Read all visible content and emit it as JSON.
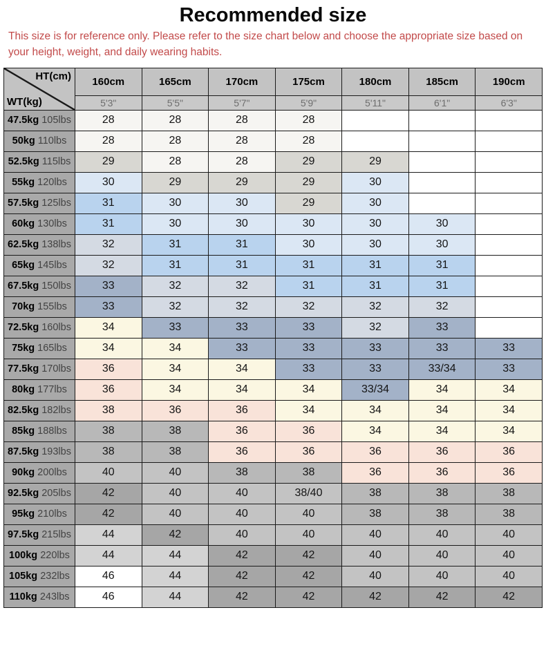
{
  "title": "Recommended size",
  "notice": "This size is for reference only. Please refer to the size chart below and choose the appropriate size based on your height, weight, and daily wearing habits.",
  "accent_color": "#c24a4a",
  "chart_data": {
    "type": "table",
    "title": "Recommended size",
    "col_axis": "HT(cm)",
    "row_axis": "WT(kg)",
    "columns_cm": [
      "160cm",
      "165cm",
      "170cm",
      "175cm",
      "180cm",
      "185cm",
      "190cm"
    ],
    "columns_ft": [
      "5'3\"",
      "5'5\"",
      "5'7\"",
      "5'9\"",
      "5'11\"",
      "6'1\"",
      "6'3\""
    ],
    "colors": {
      "w": "#f6f5f2",
      "lg": "#d8d7d2",
      "pb": "#dbe7f4",
      "mb": "#b9d3ee",
      "bg": "#d4dae3",
      "sl": "#a3b2c8",
      "cr": "#fbf7e2",
      "pk": "#f9e3d9",
      "g38": "#b8b8b8",
      "g40": "#c3c3c3",
      "g42": "#a6a6a6",
      "g44": "#d3d3d3",
      "wt": "#ffffff"
    },
    "rows": [
      {
        "kg": "47.5kg",
        "lbs": "105lbs",
        "cells": [
          {
            "v": "28",
            "c": "w"
          },
          {
            "v": "28",
            "c": "w"
          },
          {
            "v": "28",
            "c": "w"
          },
          {
            "v": "28",
            "c": "w"
          },
          {
            "v": "",
            "c": "wt"
          },
          {
            "v": "",
            "c": "wt"
          },
          {
            "v": "",
            "c": "wt"
          }
        ]
      },
      {
        "kg": "50kg",
        "lbs": "110lbs",
        "cells": [
          {
            "v": "28",
            "c": "w"
          },
          {
            "v": "28",
            "c": "w"
          },
          {
            "v": "28",
            "c": "w"
          },
          {
            "v": "28",
            "c": "w"
          },
          {
            "v": "",
            "c": "wt"
          },
          {
            "v": "",
            "c": "wt"
          },
          {
            "v": "",
            "c": "wt"
          }
        ]
      },
      {
        "kg": "52.5kg",
        "lbs": "115lbs",
        "cells": [
          {
            "v": "29",
            "c": "lg"
          },
          {
            "v": "28",
            "c": "w"
          },
          {
            "v": "28",
            "c": "w"
          },
          {
            "v": "29",
            "c": "lg"
          },
          {
            "v": "29",
            "c": "lg"
          },
          {
            "v": "",
            "c": "wt"
          },
          {
            "v": "",
            "c": "wt"
          }
        ]
      },
      {
        "kg": "55kg",
        "lbs": "120lbs",
        "cells": [
          {
            "v": "30",
            "c": "pb"
          },
          {
            "v": "29",
            "c": "lg"
          },
          {
            "v": "29",
            "c": "lg"
          },
          {
            "v": "29",
            "c": "lg"
          },
          {
            "v": "30",
            "c": "pb"
          },
          {
            "v": "",
            "c": "wt"
          },
          {
            "v": "",
            "c": "wt"
          }
        ]
      },
      {
        "kg": "57.5kg",
        "lbs": "125lbs",
        "cells": [
          {
            "v": "31",
            "c": "mb"
          },
          {
            "v": "30",
            "c": "pb"
          },
          {
            "v": "30",
            "c": "pb"
          },
          {
            "v": "29",
            "c": "lg"
          },
          {
            "v": "30",
            "c": "pb"
          },
          {
            "v": "",
            "c": "wt"
          },
          {
            "v": "",
            "c": "wt"
          }
        ]
      },
      {
        "kg": "60kg",
        "lbs": "130lbs",
        "cells": [
          {
            "v": "31",
            "c": "mb"
          },
          {
            "v": "30",
            "c": "pb"
          },
          {
            "v": "30",
            "c": "pb"
          },
          {
            "v": "30",
            "c": "pb"
          },
          {
            "v": "30",
            "c": "pb"
          },
          {
            "v": "30",
            "c": "pb"
          },
          {
            "v": "",
            "c": "wt"
          }
        ]
      },
      {
        "kg": "62.5kg",
        "lbs": "138lbs",
        "cells": [
          {
            "v": "32",
            "c": "bg"
          },
          {
            "v": "31",
            "c": "mb"
          },
          {
            "v": "31",
            "c": "mb"
          },
          {
            "v": "30",
            "c": "pb"
          },
          {
            "v": "30",
            "c": "pb"
          },
          {
            "v": "30",
            "c": "pb"
          },
          {
            "v": "",
            "c": "wt"
          }
        ]
      },
      {
        "kg": "65kg",
        "lbs": "145lbs",
        "cells": [
          {
            "v": "32",
            "c": "bg"
          },
          {
            "v": "31",
            "c": "mb"
          },
          {
            "v": "31",
            "c": "mb"
          },
          {
            "v": "31",
            "c": "mb"
          },
          {
            "v": "31",
            "c": "mb"
          },
          {
            "v": "31",
            "c": "mb"
          },
          {
            "v": "",
            "c": "wt"
          }
        ]
      },
      {
        "kg": "67.5kg",
        "lbs": "150lbs",
        "cells": [
          {
            "v": "33",
            "c": "sl"
          },
          {
            "v": "32",
            "c": "bg"
          },
          {
            "v": "32",
            "c": "bg"
          },
          {
            "v": "31",
            "c": "mb"
          },
          {
            "v": "31",
            "c": "mb"
          },
          {
            "v": "31",
            "c": "mb"
          },
          {
            "v": "",
            "c": "wt"
          }
        ]
      },
      {
        "kg": "70kg",
        "lbs": "155lbs",
        "cells": [
          {
            "v": "33",
            "c": "sl"
          },
          {
            "v": "32",
            "c": "bg"
          },
          {
            "v": "32",
            "c": "bg"
          },
          {
            "v": "32",
            "c": "bg"
          },
          {
            "v": "32",
            "c": "bg"
          },
          {
            "v": "32",
            "c": "bg"
          },
          {
            "v": "",
            "c": "wt"
          }
        ]
      },
      {
        "kg": "72.5kg",
        "lbs": "160lbs",
        "cells": [
          {
            "v": "34",
            "c": "cr"
          },
          {
            "v": "33",
            "c": "sl"
          },
          {
            "v": "33",
            "c": "sl"
          },
          {
            "v": "33",
            "c": "sl"
          },
          {
            "v": "32",
            "c": "bg"
          },
          {
            "v": "33",
            "c": "sl"
          },
          {
            "v": "",
            "c": "wt"
          }
        ]
      },
      {
        "kg": "75kg",
        "lbs": "165lbs",
        "cells": [
          {
            "v": "34",
            "c": "cr"
          },
          {
            "v": "34",
            "c": "cr"
          },
          {
            "v": "33",
            "c": "sl"
          },
          {
            "v": "33",
            "c": "sl"
          },
          {
            "v": "33",
            "c": "sl"
          },
          {
            "v": "33",
            "c": "sl"
          },
          {
            "v": "33",
            "c": "sl"
          }
        ]
      },
      {
        "kg": "77.5kg",
        "lbs": "170lbs",
        "cells": [
          {
            "v": "36",
            "c": "pk"
          },
          {
            "v": "34",
            "c": "cr"
          },
          {
            "v": "34",
            "c": "cr"
          },
          {
            "v": "33",
            "c": "sl"
          },
          {
            "v": "33",
            "c": "sl"
          },
          {
            "v": "33/34",
            "c": "sl"
          },
          {
            "v": "33",
            "c": "sl"
          }
        ]
      },
      {
        "kg": "80kg",
        "lbs": "177lbs",
        "cells": [
          {
            "v": "36",
            "c": "pk"
          },
          {
            "v": "34",
            "c": "cr"
          },
          {
            "v": "34",
            "c": "cr"
          },
          {
            "v": "34",
            "c": "cr"
          },
          {
            "v": "33/34",
            "c": "sl"
          },
          {
            "v": "34",
            "c": "cr"
          },
          {
            "v": "34",
            "c": "cr"
          }
        ]
      },
      {
        "kg": "82.5kg",
        "lbs": "182lbs",
        "cells": [
          {
            "v": "38",
            "c": "pk"
          },
          {
            "v": "36",
            "c": "pk"
          },
          {
            "v": "36",
            "c": "pk"
          },
          {
            "v": "34",
            "c": "cr"
          },
          {
            "v": "34",
            "c": "cr"
          },
          {
            "v": "34",
            "c": "cr"
          },
          {
            "v": "34",
            "c": "cr"
          }
        ]
      },
      {
        "kg": "85kg",
        "lbs": "188lbs",
        "cells": [
          {
            "v": "38",
            "c": "g38"
          },
          {
            "v": "38",
            "c": "g38"
          },
          {
            "v": "36",
            "c": "pk"
          },
          {
            "v": "36",
            "c": "pk"
          },
          {
            "v": "34",
            "c": "cr"
          },
          {
            "v": "34",
            "c": "cr"
          },
          {
            "v": "34",
            "c": "cr"
          }
        ]
      },
      {
        "kg": "87.5kg",
        "lbs": "193lbs",
        "cells": [
          {
            "v": "38",
            "c": "g38"
          },
          {
            "v": "38",
            "c": "g38"
          },
          {
            "v": "36",
            "c": "pk"
          },
          {
            "v": "36",
            "c": "pk"
          },
          {
            "v": "36",
            "c": "pk"
          },
          {
            "v": "36",
            "c": "pk"
          },
          {
            "v": "36",
            "c": "pk"
          }
        ]
      },
      {
        "kg": "90kg",
        "lbs": "200lbs",
        "cells": [
          {
            "v": "40",
            "c": "g40"
          },
          {
            "v": "40",
            "c": "g40"
          },
          {
            "v": "38",
            "c": "g38"
          },
          {
            "v": "38",
            "c": "g38"
          },
          {
            "v": "36",
            "c": "pk"
          },
          {
            "v": "36",
            "c": "pk"
          },
          {
            "v": "36",
            "c": "pk"
          }
        ]
      },
      {
        "kg": "92.5kg",
        "lbs": "205lbs",
        "cells": [
          {
            "v": "42",
            "c": "g42"
          },
          {
            "v": "40",
            "c": "g40"
          },
          {
            "v": "40",
            "c": "g40"
          },
          {
            "v": "38/40",
            "c": "g40"
          },
          {
            "v": "38",
            "c": "g38"
          },
          {
            "v": "38",
            "c": "g38"
          },
          {
            "v": "38",
            "c": "g38"
          }
        ]
      },
      {
        "kg": "95kg",
        "lbs": "210lbs",
        "cells": [
          {
            "v": "42",
            "c": "g42"
          },
          {
            "v": "40",
            "c": "g40"
          },
          {
            "v": "40",
            "c": "g40"
          },
          {
            "v": "40",
            "c": "g40"
          },
          {
            "v": "38",
            "c": "g38"
          },
          {
            "v": "38",
            "c": "g38"
          },
          {
            "v": "38",
            "c": "g38"
          }
        ]
      },
      {
        "kg": "97.5kg",
        "lbs": "215lbs",
        "cells": [
          {
            "v": "44",
            "c": "g44"
          },
          {
            "v": "42",
            "c": "g42"
          },
          {
            "v": "40",
            "c": "g40"
          },
          {
            "v": "40",
            "c": "g40"
          },
          {
            "v": "40",
            "c": "g40"
          },
          {
            "v": "40",
            "c": "g40"
          },
          {
            "v": "40",
            "c": "g40"
          }
        ]
      },
      {
        "kg": "100kg",
        "lbs": "220lbs",
        "cells": [
          {
            "v": "44",
            "c": "g44"
          },
          {
            "v": "44",
            "c": "g44"
          },
          {
            "v": "42",
            "c": "g42"
          },
          {
            "v": "42",
            "c": "g42"
          },
          {
            "v": "40",
            "c": "g40"
          },
          {
            "v": "40",
            "c": "g40"
          },
          {
            "v": "40",
            "c": "g40"
          }
        ]
      },
      {
        "kg": "105kg",
        "lbs": "232lbs",
        "cells": [
          {
            "v": "46",
            "c": "wt"
          },
          {
            "v": "44",
            "c": "g44"
          },
          {
            "v": "42",
            "c": "g42"
          },
          {
            "v": "42",
            "c": "g42"
          },
          {
            "v": "40",
            "c": "g40"
          },
          {
            "v": "40",
            "c": "g40"
          },
          {
            "v": "40",
            "c": "g40"
          }
        ]
      },
      {
        "kg": "110kg",
        "lbs": "243lbs",
        "cells": [
          {
            "v": "46",
            "c": "wt"
          },
          {
            "v": "44",
            "c": "g44"
          },
          {
            "v": "42",
            "c": "g42"
          },
          {
            "v": "42",
            "c": "g42"
          },
          {
            "v": "42",
            "c": "g42"
          },
          {
            "v": "42",
            "c": "g42"
          },
          {
            "v": "42",
            "c": "g42"
          }
        ]
      }
    ]
  }
}
